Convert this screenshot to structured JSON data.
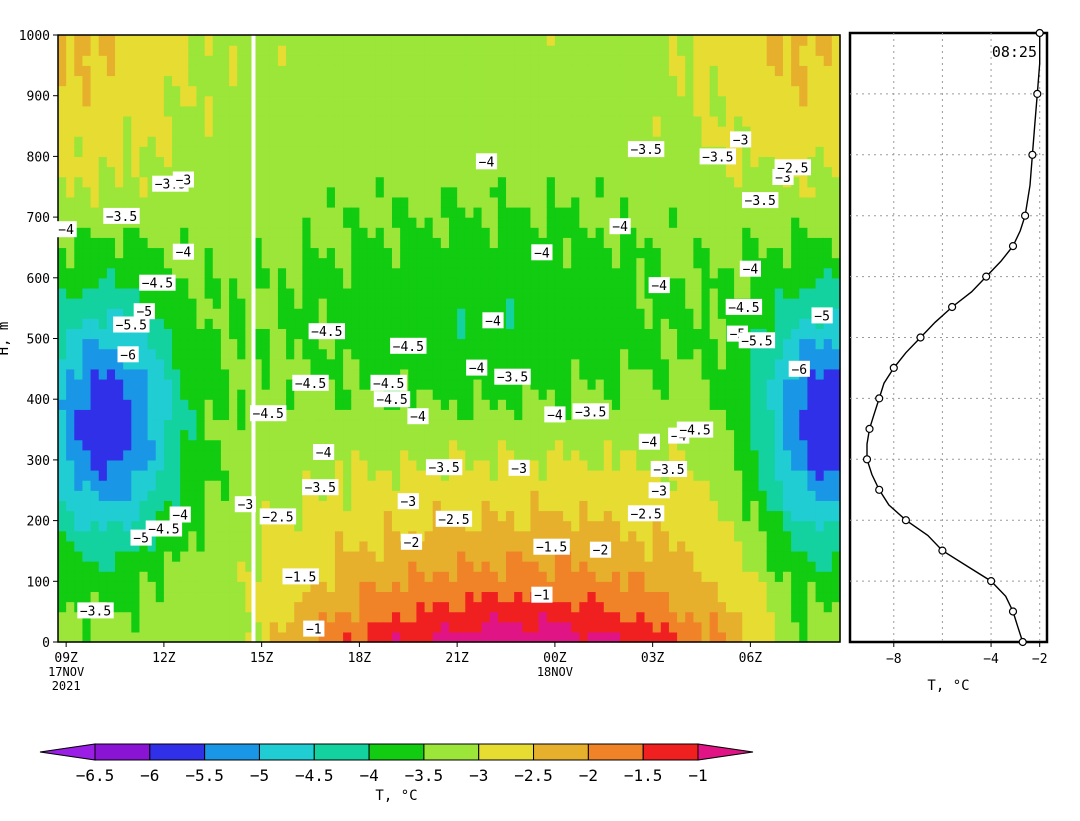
{
  "chart_data": [
    {
      "type": "heatmap",
      "title": "",
      "xlabel": "",
      "ylabel": "H, m",
      "ylim": [
        0,
        1000
      ],
      "y_ticks": [
        0,
        100,
        200,
        300,
        400,
        500,
        600,
        700,
        800,
        900,
        1000
      ],
      "x_ticks": [
        {
          "label": "09Z",
          "sub1": "17NOV",
          "sub2": "2021",
          "hour": 9
        },
        {
          "label": "12Z",
          "hour": 12
        },
        {
          "label": "15Z",
          "hour": 15
        },
        {
          "label": "18Z",
          "hour": 18
        },
        {
          "label": "21Z",
          "hour": 21
        },
        {
          "label": "00Z",
          "sub1": "18NOV",
          "hour": 24
        },
        {
          "label": "03Z",
          "hour": 27
        },
        {
          "label": "06Z",
          "hour": 30
        }
      ],
      "xlim_hours": [
        8.75,
        32.75
      ],
      "current_time_hour": 14.75,
      "grid": false,
      "colorbar": {
        "label": "T, °C",
        "levels": [
          -6.5,
          -6,
          -5.5,
          -5,
          -4.5,
          -4,
          -3.5,
          -3,
          -2.5,
          -2,
          -1.5,
          -1
        ],
        "level_labels": [
          "-6.5",
          "-6",
          "-5.5",
          "-5",
          "-4.5",
          "-4",
          "-3.5",
          "-3",
          "-2.5",
          "-2",
          "-1.5",
          "-1"
        ],
        "colors": [
          "#9b1ee6",
          "#8a14d4",
          "#3030e8",
          "#1a96e6",
          "#20cdd2",
          "#13d2a0",
          "#11cc11",
          "#9be639",
          "#e6dc32",
          "#e6b02c",
          "#f08228",
          "#f02020",
          "#e01484"
        ]
      },
      "contour_labels": [
        {
          "text": "-4",
          "t": 9.0,
          "h": 680
        },
        {
          "text": "-3.5",
          "t": 9.9,
          "h": 52
        },
        {
          "text": "-3.5",
          "t": 10.7,
          "h": 702
        },
        {
          "text": "-6",
          "t": 10.9,
          "h": 474
        },
        {
          "text": "-5.5",
          "t": 11.0,
          "h": 523
        },
        {
          "text": "-5",
          "t": 11.3,
          "h": 172
        },
        {
          "text": "-5",
          "t": 11.4,
          "h": 545
        },
        {
          "text": "-4.5",
          "t": 11.8,
          "h": 592
        },
        {
          "text": "-4.5",
          "t": 12.0,
          "h": 187
        },
        {
          "text": "-3.5",
          "t": 12.2,
          "h": 755
        },
        {
          "text": "-3",
          "t": 12.6,
          "h": 762
        },
        {
          "text": "-4",
          "t": 12.6,
          "h": 643
        },
        {
          "text": "-4",
          "t": 12.5,
          "h": 210
        },
        {
          "text": "-3",
          "t": 14.5,
          "h": 227
        },
        {
          "text": "-4.5",
          "t": 15.2,
          "h": 377
        },
        {
          "text": "-2.5",
          "t": 15.5,
          "h": 207
        },
        {
          "text": "-1.5",
          "t": 16.2,
          "h": 108
        },
        {
          "text": "-4.5",
          "t": 16.5,
          "h": 427
        },
        {
          "text": "-1",
          "t": 16.6,
          "h": 22
        },
        {
          "text": "-3.5",
          "t": 16.8,
          "h": 255
        },
        {
          "text": "-4",
          "t": 16.9,
          "h": 313
        },
        {
          "text": "-4.5",
          "t": 17.0,
          "h": 512
        },
        {
          "text": "-4.5",
          "t": 18.9,
          "h": 427
        },
        {
          "text": "-4.5",
          "t": 19.0,
          "h": 400
        },
        {
          "text": "-4.5",
          "t": 19.5,
          "h": 488
        },
        {
          "text": "-3",
          "t": 19.5,
          "h": 232
        },
        {
          "text": "-2",
          "t": 19.6,
          "h": 165
        },
        {
          "text": "-4",
          "t": 19.8,
          "h": 372
        },
        {
          "text": "-3.5",
          "t": 20.6,
          "h": 288
        },
        {
          "text": "-2.5",
          "t": 20.9,
          "h": 203
        },
        {
          "text": "-4",
          "t": 21.6,
          "h": 452
        },
        {
          "text": "-4",
          "t": 22.1,
          "h": 530
        },
        {
          "text": "-4",
          "t": 21.9,
          "h": 792
        },
        {
          "text": "-3.5",
          "t": 22.7,
          "h": 437
        },
        {
          "text": "-3",
          "t": 22.9,
          "h": 287
        },
        {
          "text": "-1",
          "t": 23.6,
          "h": 78
        },
        {
          "text": "-4",
          "t": 23.6,
          "h": 642
        },
        {
          "text": "-1.5",
          "t": 23.9,
          "h": 157
        },
        {
          "text": "-4",
          "t": 24.0,
          "h": 375
        },
        {
          "text": "-3.5",
          "t": 25.1,
          "h": 380
        },
        {
          "text": "-2",
          "t": 25.4,
          "h": 152
        },
        {
          "text": "-4",
          "t": 26.0,
          "h": 685
        },
        {
          "text": "-3.5",
          "t": 26.8,
          "h": 812
        },
        {
          "text": "-2.5",
          "t": 26.8,
          "h": 212
        },
        {
          "text": "-4",
          "t": 26.9,
          "h": 330
        },
        {
          "text": "-3",
          "t": 27.2,
          "h": 250
        },
        {
          "text": "-4",
          "t": 27.2,
          "h": 588
        },
        {
          "text": "-3.5",
          "t": 27.5,
          "h": 285
        },
        {
          "text": "-4",
          "t": 27.8,
          "h": 340
        },
        {
          "text": "-4.5",
          "t": 28.3,
          "h": 350
        },
        {
          "text": "-3.5",
          "t": 29.0,
          "h": 800
        },
        {
          "text": "-3",
          "t": 29.7,
          "h": 828
        },
        {
          "text": "-5",
          "t": 29.6,
          "h": 508
        },
        {
          "text": "-4.5",
          "t": 29.8,
          "h": 552
        },
        {
          "text": "-4",
          "t": 30.0,
          "h": 615
        },
        {
          "text": "-5.5",
          "t": 30.2,
          "h": 497
        },
        {
          "text": "-3.5",
          "t": 30.3,
          "h": 728
        },
        {
          "text": "-3",
          "t": 31.0,
          "h": 766
        },
        {
          "text": "-2.5",
          "t": 31.3,
          "h": 782
        },
        {
          "text": "-6",
          "t": 31.5,
          "h": 450
        },
        {
          "text": "-5",
          "t": 32.2,
          "h": 538
        }
      ]
    },
    {
      "type": "line",
      "title": "",
      "xlabel": "T, °C",
      "ylabel": "",
      "annotation": "08:25",
      "xlim": [
        -9.8,
        -1.7
      ],
      "ylim": [
        0,
        1000
      ],
      "x_ticks": [
        -8,
        -4,
        -2
      ],
      "x_tick_labels": [
        "-8",
        "-4",
        "-2"
      ],
      "grid": true,
      "grid_x": [
        -8,
        -6,
        -4,
        -2
      ],
      "grid_y": [
        100,
        200,
        300,
        400,
        500,
        600,
        700,
        800,
        900
      ],
      "series": [
        {
          "x": [
            -2.7,
            -2.9,
            -3.1,
            -3.4,
            -4.0,
            -5.0,
            -6.0,
            -6.6,
            -7.5,
            -8.2,
            -8.6,
            -8.9,
            -9.1,
            -9.1,
            -9.0,
            -8.8,
            -8.6,
            -8.4,
            -8.0,
            -7.5,
            -6.9,
            -6.3,
            -5.6,
            -4.8,
            -4.2,
            -3.6,
            -3.1,
            -2.8,
            -2.6,
            -2.4,
            -2.3,
            -2.2,
            -2.1,
            -2.0,
            -2.0
          ],
          "y": [
            0,
            25,
            50,
            75,
            100,
            125,
            150,
            175,
            200,
            225,
            250,
            275,
            300,
            325,
            350,
            375,
            400,
            425,
            450,
            475,
            500,
            525,
            550,
            575,
            600,
            625,
            650,
            675,
            700,
            750,
            800,
            850,
            900,
            950,
            1000
          ]
        }
      ]
    }
  ]
}
